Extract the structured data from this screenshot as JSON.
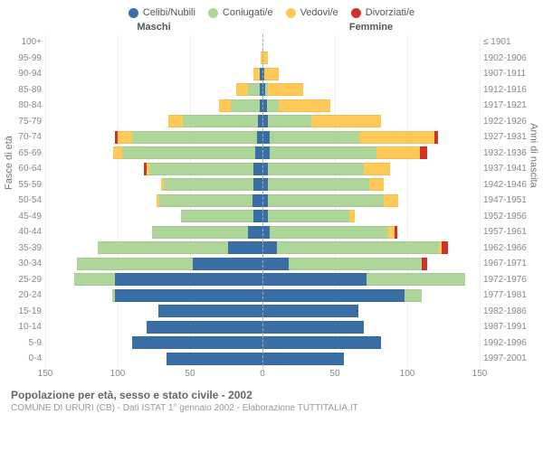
{
  "chart": {
    "type": "population-pyramid",
    "legend": [
      {
        "label": "Celibi/Nubili",
        "color": "#3a6fa6"
      },
      {
        "label": "Coniugati/e",
        "color": "#aed699"
      },
      {
        "label": "Vedovi/e",
        "color": "#fec957"
      },
      {
        "label": "Divorziati/e",
        "color": "#d3322b"
      }
    ],
    "headers": {
      "male": "Maschi",
      "female": "Femmine"
    },
    "y_left_title": "Fasce di età",
    "y_right_title": "Anni di nascita",
    "x_max": 150,
    "x_ticks": [
      150,
      100,
      50,
      0,
      50,
      100,
      150
    ],
    "colors": {
      "single": "#3a6fa6",
      "married": "#aed699",
      "widowed": "#fec957",
      "divorced": "#d3322b",
      "grid": "#eeeeee",
      "center_dash": "#aaaaaa",
      "text_muted": "#888888",
      "background": "#ffffff"
    },
    "bar_height_ratio": 0.78,
    "rows": [
      {
        "age": "100+",
        "birth": "≤ 1901",
        "m": {
          "s": 0,
          "c": 0,
          "w": 0,
          "d": 0
        },
        "f": {
          "s": 0,
          "c": 0,
          "w": 0,
          "d": 0
        }
      },
      {
        "age": "95-99",
        "birth": "1902-1906",
        "m": {
          "s": 0,
          "c": 0,
          "w": 1,
          "d": 0
        },
        "f": {
          "s": 0,
          "c": 0,
          "w": 4,
          "d": 0
        }
      },
      {
        "age": "90-94",
        "birth": "1907-1911",
        "m": {
          "s": 2,
          "c": 0,
          "w": 4,
          "d": 0
        },
        "f": {
          "s": 1,
          "c": 0,
          "w": 10,
          "d": 0
        }
      },
      {
        "age": "85-89",
        "birth": "1912-1916",
        "m": {
          "s": 2,
          "c": 8,
          "w": 8,
          "d": 0
        },
        "f": {
          "s": 2,
          "c": 2,
          "w": 24,
          "d": 0
        }
      },
      {
        "age": "80-84",
        "birth": "1917-1921",
        "m": {
          "s": 2,
          "c": 20,
          "w": 8,
          "d": 0
        },
        "f": {
          "s": 3,
          "c": 8,
          "w": 36,
          "d": 0
        }
      },
      {
        "age": "75-79",
        "birth": "1922-1926",
        "m": {
          "s": 3,
          "c": 52,
          "w": 10,
          "d": 0
        },
        "f": {
          "s": 4,
          "c": 30,
          "w": 48,
          "d": 0
        }
      },
      {
        "age": "70-74",
        "birth": "1927-1931",
        "m": {
          "s": 4,
          "c": 86,
          "w": 10,
          "d": 2
        },
        "f": {
          "s": 5,
          "c": 62,
          "w": 52,
          "d": 2
        }
      },
      {
        "age": "65-69",
        "birth": "1932-1936",
        "m": {
          "s": 5,
          "c": 92,
          "w": 6,
          "d": 0
        },
        "f": {
          "s": 5,
          "c": 74,
          "w": 30,
          "d": 5
        }
      },
      {
        "age": "60-64",
        "birth": "1937-1941",
        "m": {
          "s": 6,
          "c": 72,
          "w": 2,
          "d": 2
        },
        "f": {
          "s": 4,
          "c": 66,
          "w": 18,
          "d": 0
        }
      },
      {
        "age": "55-59",
        "birth": "1942-1946",
        "m": {
          "s": 6,
          "c": 62,
          "w": 2,
          "d": 0
        },
        "f": {
          "s": 4,
          "c": 70,
          "w": 10,
          "d": 0
        }
      },
      {
        "age": "50-54",
        "birth": "1947-1951",
        "m": {
          "s": 7,
          "c": 64,
          "w": 2,
          "d": 0
        },
        "f": {
          "s": 4,
          "c": 80,
          "w": 10,
          "d": 0
        }
      },
      {
        "age": "45-49",
        "birth": "1952-1956",
        "m": {
          "s": 6,
          "c": 50,
          "w": 0,
          "d": 0
        },
        "f": {
          "s": 4,
          "c": 56,
          "w": 4,
          "d": 0
        }
      },
      {
        "age": "40-44",
        "birth": "1957-1961",
        "m": {
          "s": 10,
          "c": 66,
          "w": 0,
          "d": 0
        },
        "f": {
          "s": 5,
          "c": 82,
          "w": 4,
          "d": 2
        }
      },
      {
        "age": "35-39",
        "birth": "1962-1966",
        "m": {
          "s": 24,
          "c": 90,
          "w": 0,
          "d": 0
        },
        "f": {
          "s": 10,
          "c": 112,
          "w": 2,
          "d": 4
        }
      },
      {
        "age": "30-34",
        "birth": "1967-1971",
        "m": {
          "s": 48,
          "c": 80,
          "w": 0,
          "d": 0
        },
        "f": {
          "s": 18,
          "c": 92,
          "w": 0,
          "d": 4
        }
      },
      {
        "age": "25-29",
        "birth": "1972-1976",
        "m": {
          "s": 102,
          "c": 28,
          "w": 0,
          "d": 0
        },
        "f": {
          "s": 72,
          "c": 68,
          "w": 0,
          "d": 0
        }
      },
      {
        "age": "20-24",
        "birth": "1977-1981",
        "m": {
          "s": 102,
          "c": 2,
          "w": 0,
          "d": 0
        },
        "f": {
          "s": 98,
          "c": 12,
          "w": 0,
          "d": 0
        }
      },
      {
        "age": "15-19",
        "birth": "1982-1986",
        "m": {
          "s": 72,
          "c": 0,
          "w": 0,
          "d": 0
        },
        "f": {
          "s": 66,
          "c": 0,
          "w": 0,
          "d": 0
        }
      },
      {
        "age": "10-14",
        "birth": "1987-1991",
        "m": {
          "s": 80,
          "c": 0,
          "w": 0,
          "d": 0
        },
        "f": {
          "s": 70,
          "c": 0,
          "w": 0,
          "d": 0
        }
      },
      {
        "age": "5-9",
        "birth": "1992-1996",
        "m": {
          "s": 90,
          "c": 0,
          "w": 0,
          "d": 0
        },
        "f": {
          "s": 82,
          "c": 0,
          "w": 0,
          "d": 0
        }
      },
      {
        "age": "0-4",
        "birth": "1997-2001",
        "m": {
          "s": 66,
          "c": 0,
          "w": 0,
          "d": 0
        },
        "f": {
          "s": 56,
          "c": 0,
          "w": 0,
          "d": 0
        }
      }
    ],
    "footer": {
      "title": "Popolazione per età, sesso e stato civile - 2002",
      "subtitle": "COMUNE DI URURI (CB) - Dati ISTAT 1° gennaio 2002 - Elaborazione TUTTITALIA.IT"
    }
  }
}
